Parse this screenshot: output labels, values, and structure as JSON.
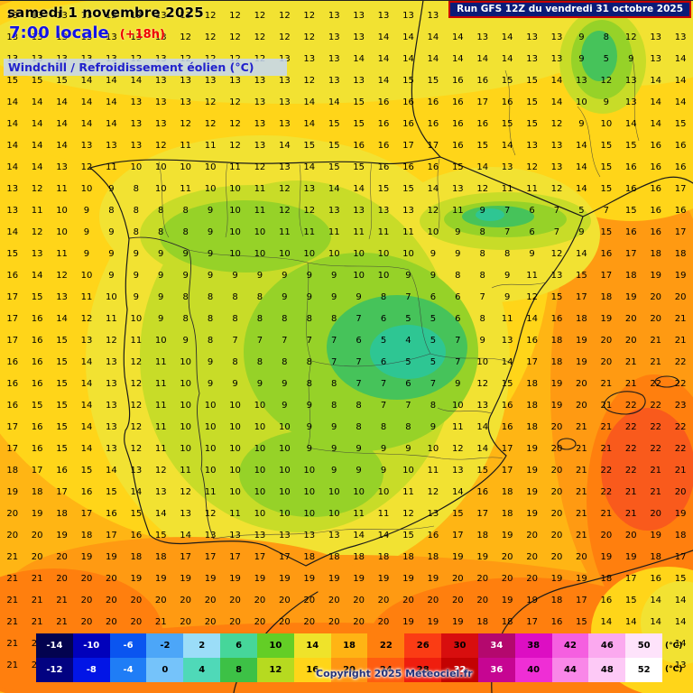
{
  "header": {
    "date": "samedi 1 novembre 2025",
    "time": "7:00 locale",
    "offset": "(+18h)",
    "variable": "Windchill / Refroidissement éolien (°C)",
    "run": "Run GFS 12Z du vendredi 31 octobre 2025"
  },
  "footer": {
    "copyright": "Copyright 2025 Meteociel.fr",
    "unit": "(°C)"
  },
  "colorbar": {
    "rows": [
      {
        "cells": [
          {
            "label": "-14",
            "color": "#03034F",
            "text": "#FFFFFF"
          },
          {
            "label": "-10",
            "color": "#0101BB",
            "text": "#FFFFFF"
          },
          {
            "label": "-6",
            "color": "#0A55F0",
            "text": "#FFFFFF"
          },
          {
            "label": "-2",
            "color": "#4CA6F8",
            "text": "#000000"
          },
          {
            "label": "2",
            "color": "#9BDDF8",
            "text": "#000000"
          },
          {
            "label": "6",
            "color": "#46D69A",
            "text": "#000000"
          },
          {
            "label": "10",
            "color": "#63CE26",
            "text": "#000000"
          },
          {
            "label": "14",
            "color": "#EFE32A",
            "text": "#000000"
          },
          {
            "label": "18",
            "color": "#FFB414",
            "text": "#000000"
          },
          {
            "label": "22",
            "color": "#FF7F0E",
            "text": "#000000"
          },
          {
            "label": "26",
            "color": "#FB3C14",
            "text": "#000000"
          },
          {
            "label": "30",
            "color": "#D80E0E",
            "text": "#000000"
          },
          {
            "label": "34",
            "color": "#B4086E",
            "text": "#FFFFFF"
          },
          {
            "label": "38",
            "color": "#DD0EC3",
            "text": "#000000"
          },
          {
            "label": "42",
            "color": "#F55FE0",
            "text": "#000000"
          },
          {
            "label": "46",
            "color": "#FBA9EF",
            "text": "#000000"
          },
          {
            "label": "50",
            "color": "#FEE3FB",
            "text": "#000000"
          }
        ]
      },
      {
        "cells": [
          {
            "label": "-12",
            "color": "#020281",
            "text": "#FFFFFF"
          },
          {
            "label": "-8",
            "color": "#0215E6",
            "text": "#FFFFFF"
          },
          {
            "label": "-4",
            "color": "#1F7DF6",
            "text": "#FFFFFF"
          },
          {
            "label": "0",
            "color": "#75C3FA",
            "text": "#000000"
          },
          {
            "label": "4",
            "color": "#4FD9B8",
            "text": "#000000"
          },
          {
            "label": "8",
            "color": "#3DC146",
            "text": "#000000"
          },
          {
            "label": "12",
            "color": "#B6DA20",
            "text": "#000000"
          },
          {
            "label": "16",
            "color": "#FFD519",
            "text": "#000000"
          },
          {
            "label": "20",
            "color": "#FF9612",
            "text": "#000000"
          },
          {
            "label": "24",
            "color": "#FF5D10",
            "text": "#000000"
          },
          {
            "label": "28",
            "color": "#EF1E0E",
            "text": "#000000"
          },
          {
            "label": "32",
            "color": "#C30202",
            "text": "#FFFFFF"
          },
          {
            "label": "36",
            "color": "#C60592",
            "text": "#FFFFFF"
          },
          {
            "label": "40",
            "color": "#EF2ED5",
            "text": "#000000"
          },
          {
            "label": "44",
            "color": "#F987E8",
            "text": "#000000"
          },
          {
            "label": "48",
            "color": "#FDC9F6",
            "text": "#000000"
          },
          {
            "label": "52",
            "color": "#FFFFFF",
            "text": "#000000"
          }
        ]
      }
    ]
  },
  "map": {
    "palette": {
      "teal_4": "#2EC693",
      "green_6": "#46C35A",
      "green_8": "#96D228",
      "yellow_green_10": "#C8DC28",
      "yellow_12": "#F2E232",
      "gold_14": "#FFD519",
      "amber_16": "#FFB514",
      "orange_18": "#FF9A12",
      "deep_orange_20": "#FF7F0E",
      "red_22": "#F95A1C"
    },
    "grid_rows": [
      "13 13 13 13 12 13 13 13 12 12 12 12 12 13 13 13 13 13 13 13 14 14 13 13 13 13 12 12",
      "13 13 13 13 13 13 13 12 12 12 12 12 12 13 13 14 14 14 14 13 14 13 13 9 8 12 13 13",
      "13 13 13 13 13 12 13 12 12 12 12 13 13 13 14 14 14 14 14 14 14 13 13 9 5 9 13 14",
      "15 15 15 14 14 14 13 13 13 13 13 13 12 13 13 14 15 15 16 16 15 15 14 13 12 13 14 14",
      "14 14 14 14 14 13 13 13 12 12 13 13 14 14 15 16 16 16 16 17 16 15 14 10 9 13 14 14",
      "14 14 14 14 14 13 13 12 12 12 13 13 14 15 15 16 16 16 16 16 15 15 12 9 10 14 14 15",
      "14 14 14 13 13 13 12 11 11 12 13 14 15 15 16 16 17 17 16 15 14 13 13 14 15 15 16 16",
      "14 14 13 12 11 10 10 10 10 11 12 13 14 15 15 16 16 16 15 14 13 12 13 14 15 16 16 16",
      "13 12 11 10 9 8 10 11 10 10 11 12 13 14 14 15 15 14 13 12 11 11 12 14 15 16 16 17",
      "13 11 10 9 8 8 8 8 9 10 11 12 12 13 13 13 13 12 11 9 7 6 7 5 7 15 16 16",
      "14 12 10 9 9 8 8 8 9 10 10 11 11 11 11 11 11 10 9 8 7 6 7 9 15 16 16 17",
      "15 13 11 9 9 9 9 9 9 10 10 10 10 10 10 10 10 9 9 8 8 9 12 14 16 17 18 18",
      "16 14 12 10 9 9 9 9 9 9 9 9 9 9 10 10 9 9 8 8 9 11 13 15 17 18 19 19",
      "17 15 13 11 10 9 9 8 8 8 8 9 9 9 9 8 7 6 6 7 9 12 15 17 18 19 20 20",
      "17 16 14 12 11 10 9 8 8 8 8 8 8 8 7 6 5 5 6 8 11 14 16 18 19 20 20 21",
      "17 16 15 13 12 11 10 9 8 7 7 7 7 7 6 5 4 5 7 9 13 16 18 19 20 20 21 21",
      "16 16 15 14 13 12 11 10 9 8 8 8 8 7 7 6 5 5 7 10 14 17 18 19 20 21 21 22",
      "16 16 15 14 13 12 11 10 9 9 9 9 8 8 7 7 6 7 9 12 15 18 19 20 21 21 22 22",
      "16 15 15 14 13 12 11 10 10 10 10 9 9 8 8 7 7 8 10 13 16 18 19 20 21 22 22 23",
      "17 16 15 14 13 12 11 10 10 10 10 10 9 9 8 8 8 9 11 14 16 18 20 21 21 22 22 22",
      "17 16 15 14 13 12 11 10 10 10 10 10 9 9 9 9 9 10 12 14 17 19 20 21 21 22 22 22",
      "18 17 16 15 14 13 12 11 10 10 10 10 10 9 9 9 10 11 13 15 17 19 20 21 22 22 21 21",
      "19 18 17 16 15 14 13 12 11 10 10 10 10 10 10 10 11 12 14 16 18 19 20 21 22 21 21 20",
      "20 19 18 17 16 15 14 13 12 11 10 10 10 10 11 11 12 13 15 17 18 19 20 21 21 21 20 19",
      "20 20 19 18 17 16 15 14 13 13 13 13 13 13 14 14 15 16 17 18 19 20 20 21 20 20 19 18",
      "21 20 20 19 19 18 18 17 17 17 17 17 18 18 18 18 18 18 19 19 20 20 20 20 19 19 18 17",
      "21 21 20 20 20 19 19 19 19 19 19 19 19 19 19 19 19 19 20 20 20 20 19 19 18 17 16 15",
      "21 21 21 20 20 20 20 20 20 20 20 20 20 20 20 20 20 20 20 20 19 19 18 17 16 15 14 14",
      "21 21 21 20 20 20 21 20 20 20 20 20 20 20 20 20 19 19 19 18 18 17 16 15 14 14 14 14",
      "21 21 20 20 20 20 20 20 20 20 20 20 20 20 20 20 19 19 18 18 17 17 16 15 14 14 14 14",
      "21 21 21 20 20 20 20 20 20 20 19 19 19 19 19 19 19 18 18 17 17 16 15 14 14 13 13 13"
    ]
  }
}
